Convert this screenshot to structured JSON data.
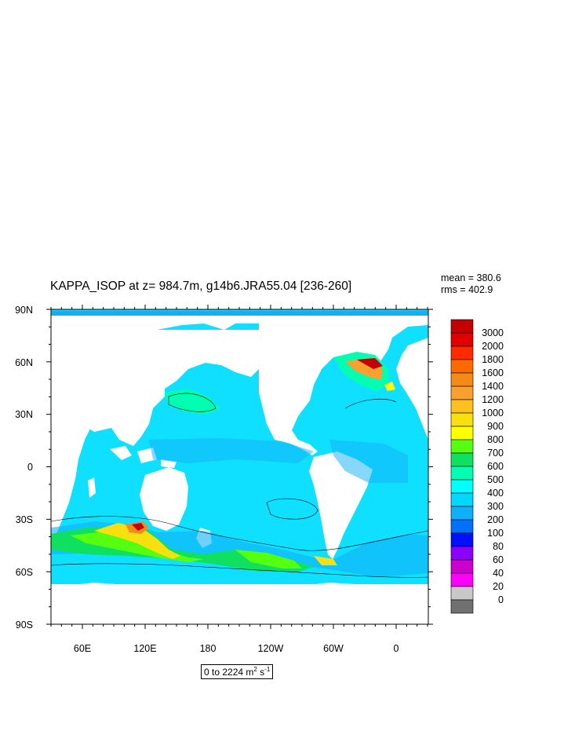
{
  "title": "KAPPA_ISOP at z= 984.7m, g14b6.JRA55.04 [236-260]",
  "stats": {
    "mean": "mean = 380.6",
    "rms": "rms = 402.9"
  },
  "range": {
    "prefix": "0 to 2224 m",
    "sup1": "2",
    "mid": " s",
    "sup2": "-1"
  },
  "axes": {
    "lat_labels": [
      "90N",
      "60N",
      "30N",
      "0",
      "30S",
      "60S",
      "90S"
    ],
    "lon_labels": [
      "60E",
      "120E",
      "180",
      "120W",
      "60W",
      "0"
    ]
  },
  "colorbar": {
    "levels": [
      "3000",
      "2000",
      "1800",
      "1600",
      "1400",
      "1200",
      "1000",
      "900",
      "800",
      "700",
      "600",
      "500",
      "400",
      "300",
      "200",
      "100",
      "80",
      "60",
      "40",
      "20",
      "0"
    ],
    "colors": [
      "#c40000",
      "#e00000",
      "#ff2a00",
      "#ff6a00",
      "#f48a18",
      "#f8a030",
      "#fdc020",
      "#f8e010",
      "#ffff00",
      "#55ff10",
      "#10e060",
      "#00ffb0",
      "#00ffff",
      "#00d8ff",
      "#10b0f8",
      "#0070ff",
      "#0010ff",
      "#8b00ff",
      "#cc00cc",
      "#ff00ff",
      "#c8c8c8",
      "#707070"
    ]
  },
  "colors": {
    "land": "#ffffff",
    "ocean_base": "#10e0ff",
    "frame": "#000000"
  }
}
